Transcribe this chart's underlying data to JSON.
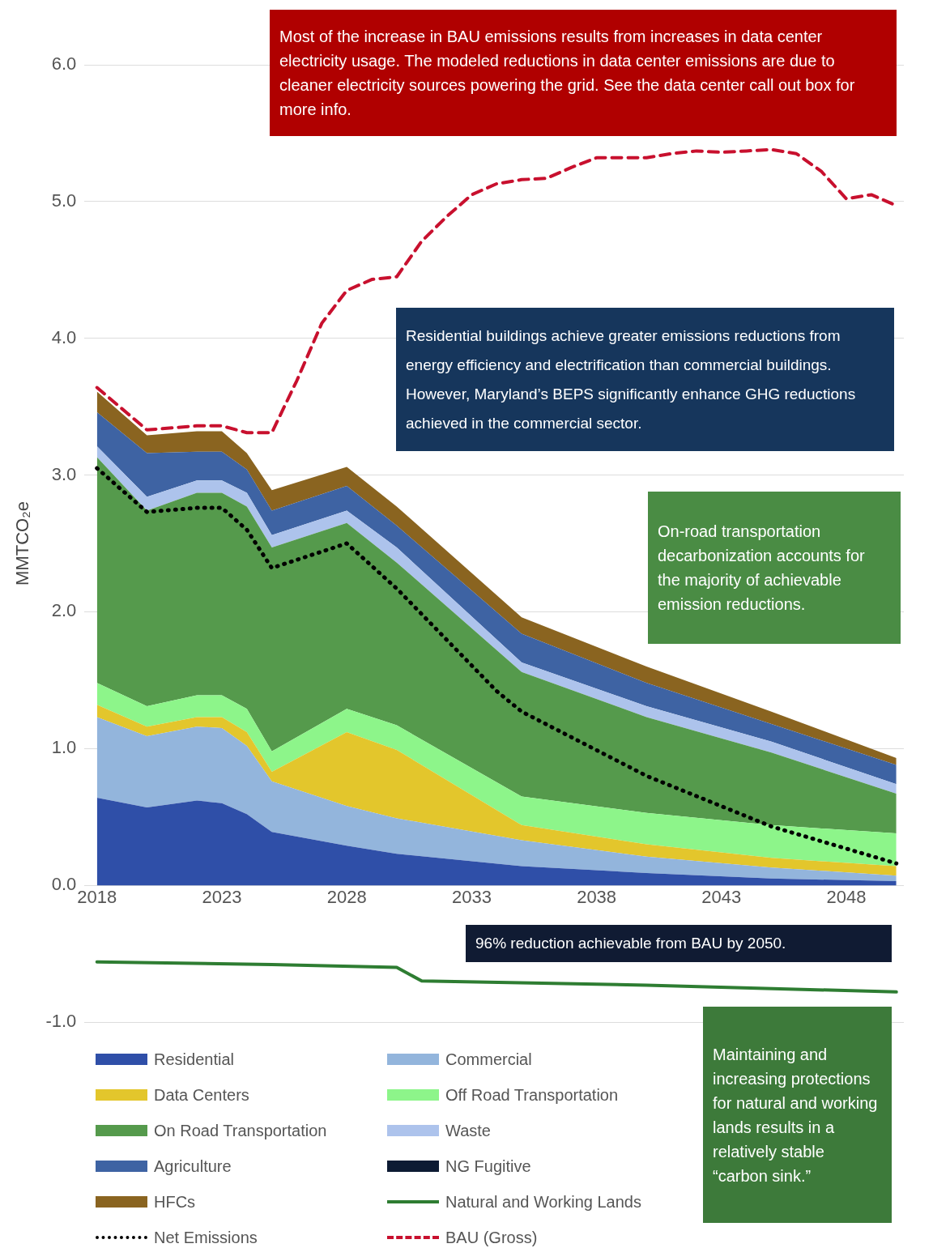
{
  "chart_data": {
    "type": "area",
    "ylabel": "MMTCO₂e",
    "stacked": true,
    "grid": "y",
    "legend": "bottom",
    "marker": "none",
    "x": [
      2018,
      2020,
      2022,
      2023,
      2024,
      2025,
      2028,
      2030,
      2035,
      2040,
      2045,
      2050
    ],
    "xlim": [
      2017.5,
      2050.3
    ],
    "xticks": [
      2018,
      2023,
      2028,
      2033,
      2038,
      2043,
      2048
    ],
    "ylim": [
      -1,
      6
    ],
    "yticks": [
      {
        "value": -1,
        "label": "-1.0"
      },
      {
        "value": 0,
        "label": "0.0"
      },
      {
        "value": 1,
        "label": "1.0"
      },
      {
        "value": 2,
        "label": "2.0"
      },
      {
        "value": 3,
        "label": "3.0"
      },
      {
        "value": 4,
        "label": "4.0"
      },
      {
        "value": 5,
        "label": "5.0"
      },
      {
        "value": 6,
        "label": "6.0"
      }
    ],
    "series": [
      {
        "name": "Residential",
        "color": "#2f4fa8",
        "values": [
          0.64,
          0.57,
          0.62,
          0.6,
          0.52,
          0.39,
          0.29,
          0.23,
          0.14,
          0.09,
          0.05,
          0.03
        ]
      },
      {
        "name": "Commercial",
        "color": "#93b5dc",
        "values": [
          0.59,
          0.52,
          0.54,
          0.55,
          0.5,
          0.37,
          0.29,
          0.26,
          0.19,
          0.12,
          0.08,
          0.04
        ]
      },
      {
        "name": "Data Centers",
        "color": "#e3c62c",
        "values": [
          0.09,
          0.07,
          0.07,
          0.08,
          0.1,
          0.07,
          0.54,
          0.5,
          0.11,
          0.09,
          0.07,
          0.07
        ]
      },
      {
        "name": "Off Road Transportation",
        "color": "#8df58a",
        "values": [
          0.16,
          0.15,
          0.16,
          0.16,
          0.17,
          0.15,
          0.17,
          0.18,
          0.21,
          0.23,
          0.24,
          0.24
        ]
      },
      {
        "name": "On Road Transportation",
        "color": "#559a4c",
        "values": [
          1.65,
          1.43,
          1.48,
          1.48,
          1.48,
          1.49,
          1.36,
          1.19,
          0.91,
          0.7,
          0.53,
          0.29
        ]
      },
      {
        "name": "Waste",
        "color": "#adc3ec",
        "values": [
          0.08,
          0.1,
          0.09,
          0.09,
          0.1,
          0.09,
          0.09,
          0.11,
          0.07,
          0.08,
          0.08,
          0.07
        ]
      },
      {
        "name": "Agriculture",
        "color": "#3e63a3",
        "values": [
          0.25,
          0.32,
          0.21,
          0.21,
          0.17,
          0.18,
          0.18,
          0.16,
          0.21,
          0.17,
          0.13,
          0.14
        ]
      },
      {
        "name": "NG Fugitive",
        "color": "#0d1b33",
        "values": [
          null,
          null,
          null,
          null,
          null,
          null,
          null,
          null,
          null,
          null,
          null,
          null
        ]
      },
      {
        "name": "HFCs",
        "color": "#8a6420",
        "values": [
          0.15,
          0.13,
          0.15,
          0.15,
          0.12,
          0.15,
          0.14,
          0.14,
          0.12,
          0.12,
          0.09,
          0.05
        ]
      },
      {
        "name": "Natural and Working Lands",
        "type": "line",
        "line_style": "solid",
        "color": "#2e7d32",
        "x": [
          2018,
          2025,
          2030,
          2031,
          2040,
          2050
        ],
        "values": [
          -0.56,
          -0.58,
          -0.6,
          -0.7,
          -0.73,
          -0.78
        ]
      },
      {
        "name": "Net Emissions",
        "type": "line",
        "line_style": "dotted",
        "color": "#000000",
        "x": [
          2018,
          2020,
          2022,
          2023,
          2024,
          2025,
          2028,
          2030,
          2034,
          2035,
          2040,
          2045,
          2050
        ],
        "values": [
          3.05,
          2.73,
          2.76,
          2.76,
          2.6,
          2.32,
          2.5,
          2.17,
          1.42,
          1.27,
          0.8,
          0.43,
          0.16
        ]
      },
      {
        "name": "BAU (Gross)",
        "type": "line",
        "line_style": "dashed",
        "color": "#c8102e",
        "x": [
          2018,
          2020,
          2022,
          2023,
          2024,
          2025,
          2026,
          2027,
          2028,
          2029,
          2030,
          2031,
          2032,
          2033,
          2034,
          2035,
          2036,
          2037,
          2038,
          2039,
          2040,
          2041,
          2042,
          2043,
          2044,
          2045,
          2046,
          2047,
          2048,
          2049,
          2050
        ],
        "values": [
          3.64,
          3.33,
          3.36,
          3.36,
          3.31,
          3.31,
          3.69,
          4.11,
          4.35,
          4.43,
          4.45,
          4.71,
          4.89,
          5.05,
          5.13,
          5.16,
          5.17,
          5.25,
          5.32,
          5.32,
          5.32,
          5.35,
          5.37,
          5.36,
          5.37,
          5.38,
          5.35,
          5.22,
          5.02,
          5.05,
          4.97
        ]
      }
    ],
    "annotations": [
      "Most of the increase in BAU emissions results from increases in data center electricity usage. The modeled reductions in data center emissions are due to cleaner electricity sources powering the grid. See the data center call out box for more info.",
      "Residential buildings achieve greater emissions reductions from energy efficiency and electrification than commercial buildings. However, Maryland’s BEPS significantly enhance GHG reductions achieved in the commercial sector.",
      "On-road transportation decarbonization accounts for the majority of achievable emission reductions.",
      "96% reduction achievable from BAU by 2050.",
      "Maintaining and increasing protections for natural and working lands results in a relatively stable “carbon sink.”"
    ]
  }
}
